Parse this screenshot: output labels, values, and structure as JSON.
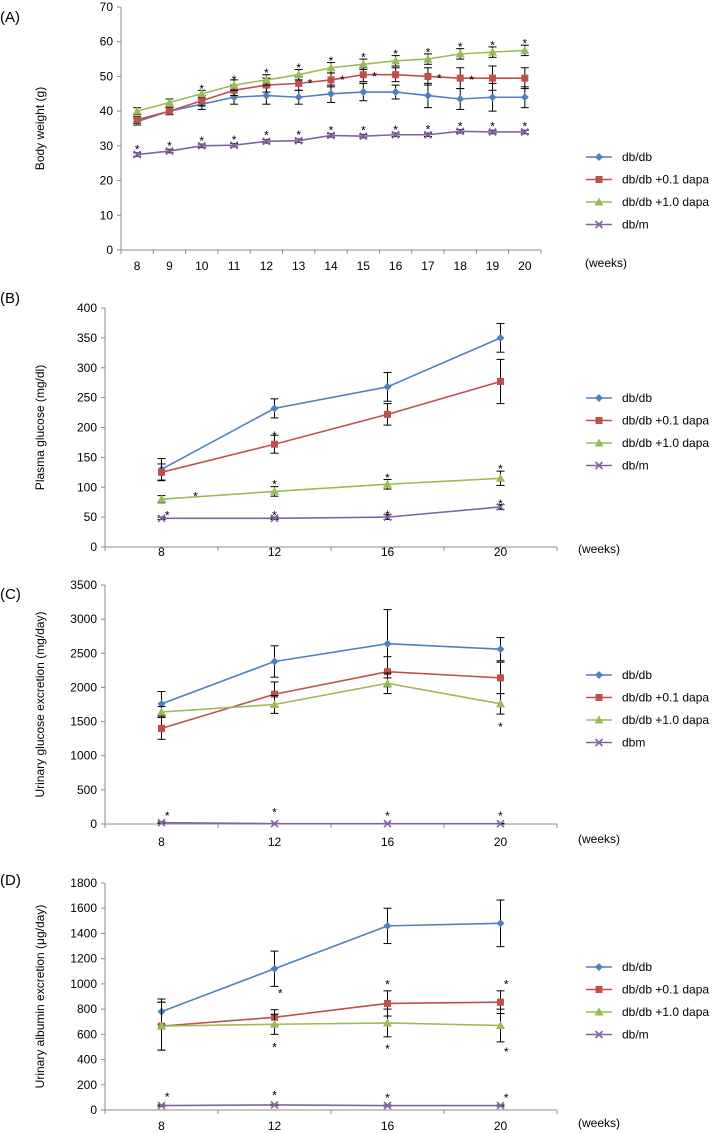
{
  "series_styles": [
    {
      "color": "#4f81bd",
      "marker": "diamond"
    },
    {
      "color": "#c0504d",
      "marker": "square"
    },
    {
      "color": "#9bbb59",
      "marker": "triangle"
    },
    {
      "color": "#8064a2",
      "marker": "x"
    }
  ],
  "chart_data": [
    {
      "type": "line",
      "label": "(A)",
      "ylabel": "Body weight (g)",
      "xunit": "(weeks)",
      "categories": [
        "8",
        "9",
        "10",
        "11",
        "12",
        "13",
        "14",
        "15",
        "16",
        "17",
        "18",
        "19",
        "20"
      ],
      "ylim": [
        0,
        70
      ],
      "yticks": [
        0,
        10,
        20,
        30,
        40,
        50,
        60,
        70
      ],
      "series": [
        {
          "name": "db/db",
          "values": [
            37,
            40,
            42,
            44,
            44.5,
            44,
            45,
            45.5,
            45.5,
            44.5,
            43.5,
            44,
            44
          ],
          "errors": [
            1,
            1,
            1.5,
            2,
            2.5,
            2,
            2.5,
            2.5,
            2,
            3.5,
            3,
            4,
            3
          ]
        },
        {
          "name": "db/db +0.1 dapa",
          "values": [
            37.5,
            40,
            43,
            46,
            47.5,
            48,
            49,
            50.5,
            50.5,
            50,
            49.5,
            49.5,
            49.5
          ],
          "errors": [
            1,
            1,
            1.5,
            1.5,
            2,
            2,
            2,
            2,
            2,
            2.5,
            3,
            3.5,
            3
          ]
        },
        {
          "name": "db/db +1.0 dapa",
          "values": [
            40,
            42.5,
            45,
            47.5,
            49,
            50.5,
            52.5,
            53.5,
            54.5,
            55,
            56.5,
            57,
            57.5
          ],
          "errors": [
            1,
            1,
            1,
            1.5,
            1.5,
            1.5,
            1.5,
            1.5,
            1.5,
            1.5,
            1.5,
            1.5,
            1.5
          ]
        },
        {
          "name": "db/m",
          "values": [
            27.5,
            28.5,
            30,
            30.2,
            31.3,
            31.5,
            33,
            32.8,
            33.2,
            33.2,
            34.2,
            34,
            34
          ],
          "errors": [
            0.5,
            0.5,
            0.5,
            0.5,
            0.5,
            0.5,
            0.5,
            0.5,
            0.5,
            0.5,
            0.5,
            0.5,
            0.5
          ]
        }
      ],
      "stars": [
        {
          "x": 0,
          "y": 29.5
        },
        {
          "x": 1,
          "y": 30.5
        },
        {
          "x": 2,
          "y": 32
        },
        {
          "x": 3,
          "y": 32.3
        },
        {
          "x": 4,
          "y": 33.5
        },
        {
          "x": 5,
          "y": 33.7
        },
        {
          "x": 6,
          "y": 35
        },
        {
          "x": 7,
          "y": 35
        },
        {
          "x": 8,
          "y": 35.2
        },
        {
          "x": 9,
          "y": 35.3
        },
        {
          "x": 10,
          "y": 36.2
        },
        {
          "x": 11,
          "y": 36.2
        },
        {
          "x": 12,
          "y": 36.2
        },
        {
          "x": 2,
          "y": 47
        },
        {
          "x": 3,
          "y": 49.5
        },
        {
          "x": 4,
          "y": 51.5
        },
        {
          "x": 5,
          "y": 53
        },
        {
          "x": 6,
          "y": 55
        },
        {
          "x": 7,
          "y": 56
        },
        {
          "x": 8,
          "y": 57
        },
        {
          "x": 9,
          "y": 57.5
        },
        {
          "x": 10,
          "y": 59
        },
        {
          "x": 11,
          "y": 59.5
        },
        {
          "x": 12,
          "y": 60
        },
        {
          "x": 5.35,
          "y": 48.5
        },
        {
          "x": 6.35,
          "y": 49.5
        },
        {
          "x": 7.35,
          "y": 50.5
        },
        {
          "x": 9.35,
          "y": 50
        },
        {
          "x": 10.35,
          "y": 49.5
        }
      ]
    },
    {
      "type": "line",
      "label": "(B)",
      "ylabel": "Plasma glucose (mg/dl)",
      "xunit": "(weeks)",
      "categories": [
        "8",
        "12",
        "16",
        "20"
      ],
      "ylim": [
        0,
        400
      ],
      "yticks": [
        0,
        50,
        100,
        150,
        200,
        250,
        300,
        350,
        400
      ],
      "series": [
        {
          "name": "db/db",
          "values": [
            130,
            232,
            268,
            350
          ],
          "errors": [
            18,
            16,
            24,
            24
          ]
        },
        {
          "name": "db/db +0.1 dapa",
          "values": [
            125,
            172,
            222,
            277
          ],
          "errors": [
            14,
            15,
            18,
            37
          ]
        },
        {
          "name": "db/db +1.0 dapa",
          "values": [
            80,
            93,
            105,
            115
          ],
          "errors": [
            6,
            8,
            8,
            12
          ]
        },
        {
          "name": "db/m",
          "values": [
            48,
            48,
            50,
            67
          ],
          "errors": [
            2,
            2,
            4,
            4
          ]
        }
      ],
      "stars": [
        {
          "x": 0.3,
          "y": 88
        },
        {
          "x": 1,
          "y": 108
        },
        {
          "x": 2,
          "y": 119
        },
        {
          "x": 3,
          "y": 134
        },
        {
          "x": 1,
          "y": 189
        },
        {
          "x": 0.05,
          "y": 56
        },
        {
          "x": 1,
          "y": 56
        },
        {
          "x": 2,
          "y": 57
        },
        {
          "x": 3,
          "y": 75
        }
      ]
    },
    {
      "type": "line",
      "label": "(C)",
      "ylabel": "Urinary glucose excretion (mg/day)",
      "xunit": "(weeks)",
      "categories": [
        "8",
        "12",
        "16",
        "20"
      ],
      "ylim": [
        0,
        3500
      ],
      "yticks": [
        0,
        500,
        1000,
        1500,
        2000,
        2500,
        3000,
        3500
      ],
      "series": [
        {
          "name": "db/db",
          "values": [
            1760,
            2380,
            2640,
            2560
          ],
          "errors": [
            180,
            230,
            500,
            170
          ]
        },
        {
          "name": "db/db +0.1 dapa",
          "values": [
            1400,
            1900,
            2230,
            2140
          ],
          "errors": [
            160,
            180,
            220,
            230
          ]
        },
        {
          "name": "db/db +1.0 dapa",
          "values": [
            1640,
            1750,
            2060,
            1760
          ],
          "errors": [
            80,
            130,
            150,
            150
          ]
        },
        {
          "name": "dbm",
          "values": [
            20,
            5,
            5,
            5
          ],
          "errors": [
            10,
            5,
            5,
            5
          ]
        }
      ],
      "stars": [
        {
          "x": 3,
          "y": 1450
        },
        {
          "x": 0.05,
          "y": 150
        },
        {
          "x": 1,
          "y": 200
        },
        {
          "x": 2,
          "y": 150
        },
        {
          "x": 3,
          "y": 150
        }
      ]
    },
    {
      "type": "line",
      "label": "(D)",
      "ylabel": "Urinary albumin excretion (μg/day)",
      "xunit": "(weeks)",
      "categories": [
        "8",
        "12",
        "16",
        "20"
      ],
      "ylim": [
        0,
        1800
      ],
      "yticks": [
        0,
        200,
        400,
        600,
        800,
        1000,
        1200,
        1400,
        1600,
        1800
      ],
      "series": [
        {
          "name": "db/db",
          "values": [
            780,
            1120,
            1460,
            1480
          ],
          "errors": [
            100,
            140,
            140,
            185
          ]
        },
        {
          "name": "db/db +0.1 dapa",
          "values": [
            665,
            735,
            845,
            855
          ],
          "errors": [
            190,
            60,
            100,
            90
          ]
        },
        {
          "name": "db/db +1.0 dapa",
          "values": [
            665,
            680,
            690,
            670
          ],
          "errors": [
            190,
            80,
            110,
            130
          ]
        },
        {
          "name": "db/m",
          "values": [
            35,
            40,
            35,
            35
          ],
          "errors": [
            5,
            5,
            5,
            5
          ]
        }
      ],
      "stars": [
        {
          "x": 1.05,
          "y": 940
        },
        {
          "x": 2,
          "y": 1010
        },
        {
          "x": 3.05,
          "y": 1010
        },
        {
          "x": 1,
          "y": 510
        },
        {
          "x": 2,
          "y": 500
        },
        {
          "x": 3.05,
          "y": 475
        },
        {
          "x": 0.05,
          "y": 120
        },
        {
          "x": 1,
          "y": 130
        },
        {
          "x": 2,
          "y": 110
        },
        {
          "x": 3.05,
          "y": 110
        }
      ]
    }
  ]
}
